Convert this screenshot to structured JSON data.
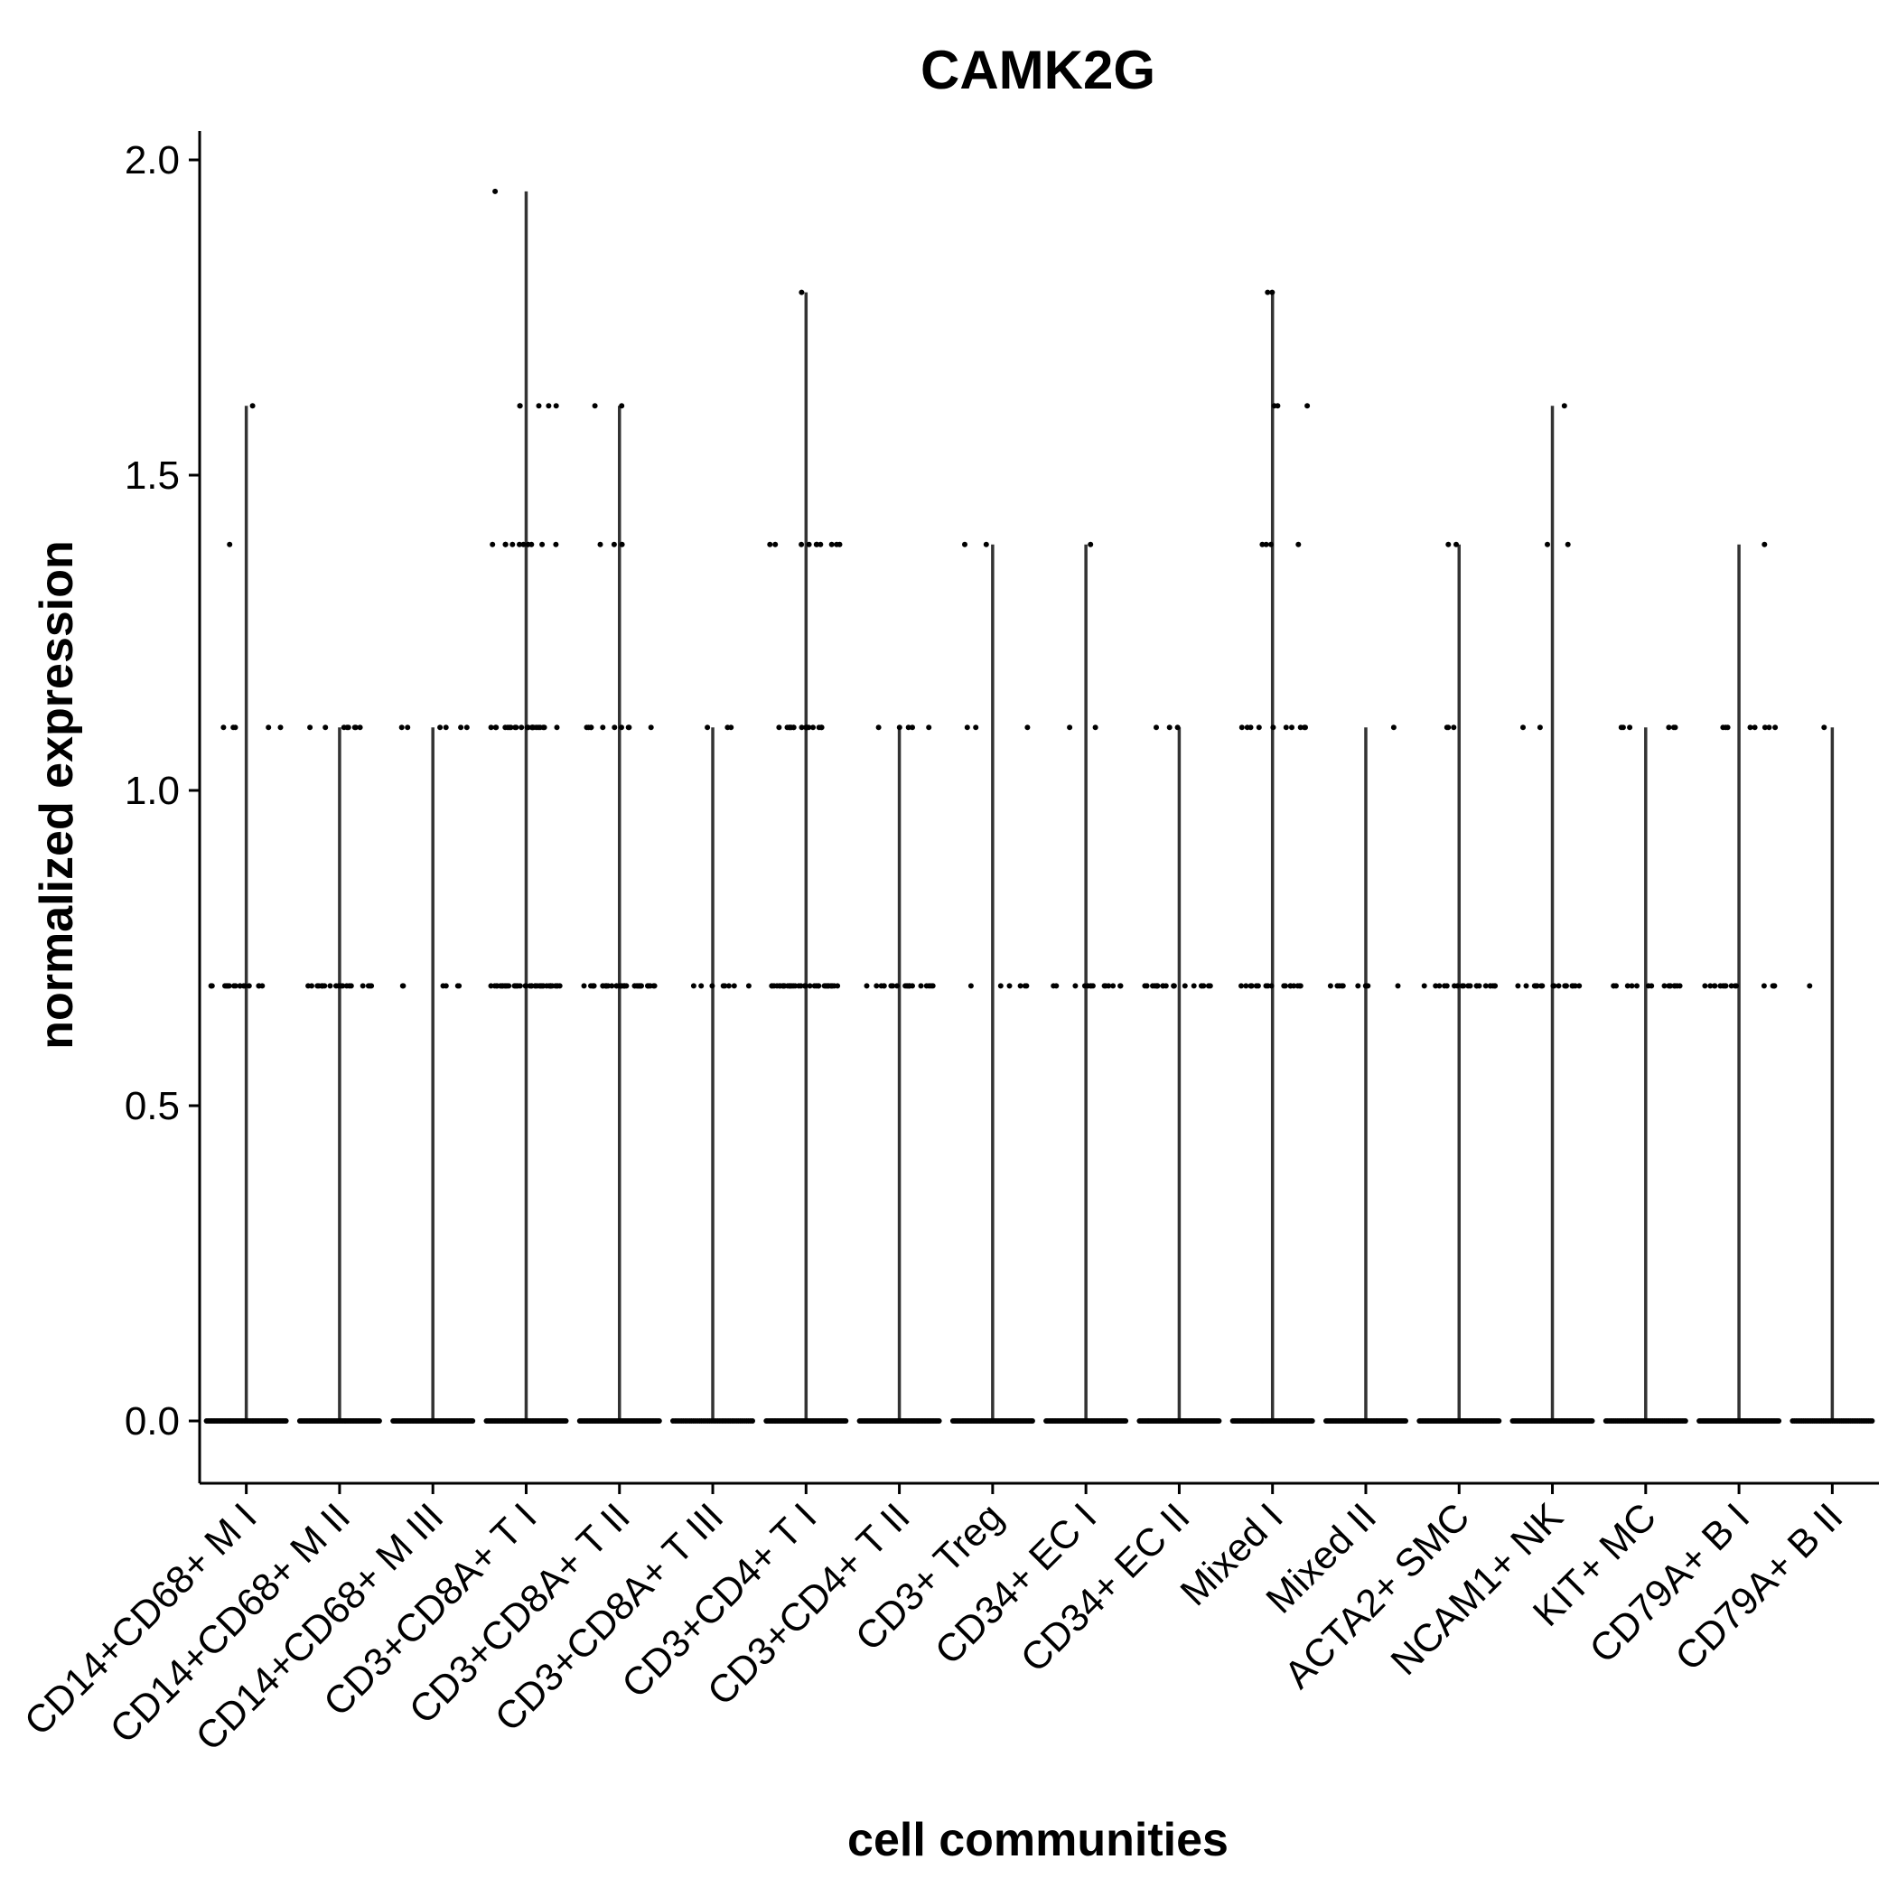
{
  "chart_data": {
    "type": "violin",
    "title": "CAMK2G",
    "xlabel": "cell communities",
    "ylabel": "normalized expression",
    "ylim": [
      -0.1,
      2.05
    ],
    "yticks": [
      "0.0",
      "0.5",
      "1.0",
      "1.5",
      "2.0"
    ],
    "grid": false,
    "legend": "none",
    "categories": [
      "CD14+CD68+ M I",
      "CD14+CD68+ M II",
      "CD14+CD68+ M III",
      "CD3+CD8A+ T I",
      "CD3+CD8A+ T II",
      "CD3+CD8A+ T III",
      "CD3+CD4+ T I",
      "CD3+CD4+ T II",
      "CD3+ Treg",
      "CD34+ EC I",
      "CD34+ EC II",
      "Mixed I",
      "Mixed II",
      "ACTA2+ SMC",
      "NCAM1+ NK",
      "KIT+ MC",
      "CD79A+ B I",
      "CD79A+ B II"
    ],
    "max_values": [
      1.61,
      1.1,
      1.1,
      1.95,
      1.61,
      1.1,
      1.79,
      1.1,
      1.39,
      1.39,
      1.1,
      1.79,
      1.1,
      1.39,
      1.61,
      1.1,
      1.39,
      1.1
    ],
    "expression_levels": [
      [
        0.0,
        0.69,
        1.1,
        1.39,
        1.61
      ],
      [
        0.0,
        0.69,
        1.1
      ],
      [
        0.0,
        0.69,
        1.1
      ],
      [
        0.0,
        0.69,
        1.1,
        1.39,
        1.61,
        1.95
      ],
      [
        0.0,
        0.69,
        1.1,
        1.39,
        1.61
      ],
      [
        0.0,
        0.69,
        1.1
      ],
      [
        0.0,
        0.69,
        1.1,
        1.39,
        1.79
      ],
      [
        0.0,
        0.69,
        1.1
      ],
      [
        0.0,
        0.69,
        1.1,
        1.39
      ],
      [
        0.0,
        0.69,
        1.1,
        1.39
      ],
      [
        0.0,
        0.69,
        1.1
      ],
      [
        0.0,
        0.69,
        1.1,
        1.39,
        1.61,
        1.79
      ],
      [
        0.0,
        0.69,
        1.1
      ],
      [
        0.0,
        0.69,
        1.1,
        1.39
      ],
      [
        0.0,
        0.69,
        1.1,
        1.39,
        1.61
      ],
      [
        0.0,
        0.69,
        1.1
      ],
      [
        0.0,
        0.69,
        1.1,
        1.39
      ],
      [
        0.0,
        0.69,
        1.1
      ]
    ],
    "point_counts": [
      [
        60,
        18,
        5,
        1,
        1
      ],
      [
        60,
        20,
        8
      ],
      [
        60,
        6,
        6
      ],
      [
        60,
        40,
        22,
        10,
        5,
        1
      ],
      [
        60,
        40,
        10,
        3,
        2
      ],
      [
        40,
        8,
        3
      ],
      [
        60,
        40,
        18,
        10,
        1
      ],
      [
        60,
        20,
        5
      ],
      [
        60,
        6,
        3,
        2
      ],
      [
        60,
        14,
        2,
        1
      ],
      [
        60,
        22,
        3
      ],
      [
        60,
        18,
        10,
        4,
        3,
        2
      ],
      [
        60,
        10,
        1
      ],
      [
        60,
        20,
        3,
        2
      ],
      [
        60,
        18,
        2,
        2,
        1
      ],
      [
        50,
        16,
        6
      ],
      [
        60,
        16,
        8,
        1
      ],
      [
        45,
        1,
        1
      ]
    ],
    "colors": {
      "points": "#000000",
      "line": "#333333",
      "axis": "#000000"
    }
  }
}
